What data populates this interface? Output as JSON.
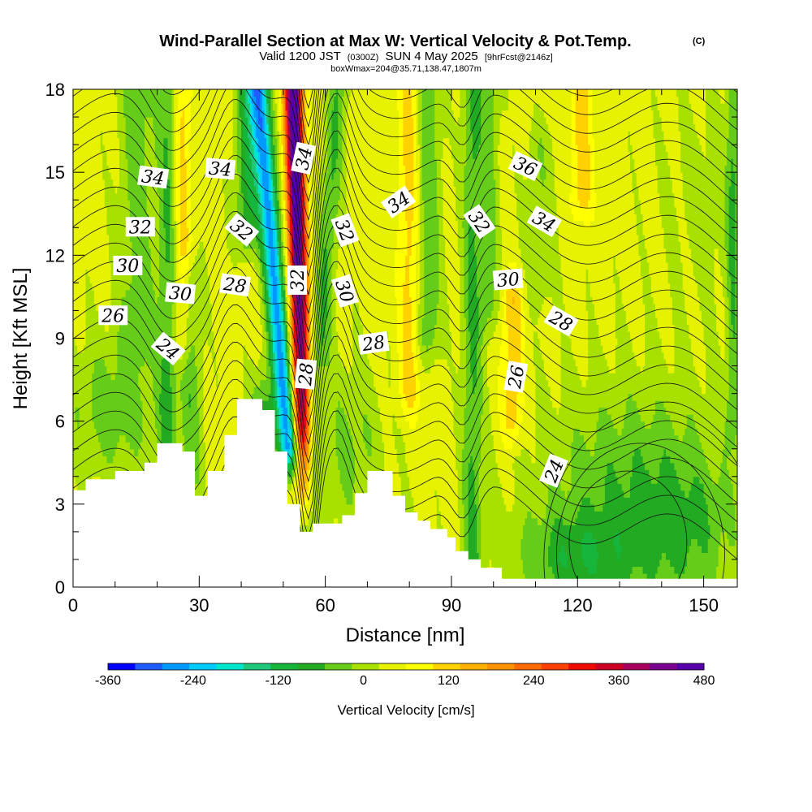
{
  "chart_data": {
    "type": "heatmap",
    "title": "Wind-Parallel Section at Max W: Vertical Velocity & Pot.Temp.",
    "title_tag": "(C)",
    "subtitle": {
      "prefix": "Valid 1200 JST",
      "utc": "(0300Z)",
      "date": "SUN 4 May 2025",
      "forecast": "[9hrFcst@2146z]"
    },
    "info_line": "boxWmax=204@35.71,138.47,1807m",
    "xlabel": "Distance [nm]",
    "ylabel": "Height [Kft MSL]",
    "xlim": [
      0,
      158
    ],
    "ylim": [
      0,
      18
    ],
    "x_ticks": [
      "0",
      "30",
      "60",
      "90",
      "120",
      "150"
    ],
    "y_ticks": [
      "0",
      "3",
      "6",
      "9",
      "12",
      "15",
      "18"
    ],
    "colorbar": {
      "label": "Vertical Velocity [cm/s]",
      "range": [
        -360,
        480
      ],
      "tick_labels": [
        "-360",
        "-240",
        "-120",
        "0",
        "120",
        "240",
        "360",
        "480"
      ],
      "colors": [
        "#0000ff",
        "#1e5cff",
        "#0099ff",
        "#00ccff",
        "#00e6cc",
        "#1fc77a",
        "#16b63c",
        "#22aa22",
        "#66cc1a",
        "#a8e000",
        "#e6f200",
        "#ffff00",
        "#ffd200",
        "#ffb000",
        "#ff9200",
        "#ff6a00",
        "#ff4000",
        "#ee0a00",
        "#cc0022",
        "#a8005c",
        "#7a0090",
        "#5500aa"
      ]
    },
    "terrain": [
      [
        0,
        3.5
      ],
      [
        2,
        3.5
      ],
      [
        3,
        3.9
      ],
      [
        9,
        3.9
      ],
      [
        10,
        4.2
      ],
      [
        16,
        4.2
      ],
      [
        17,
        4.5
      ],
      [
        19,
        4.5
      ],
      [
        20,
        5.2
      ],
      [
        25,
        5.2
      ],
      [
        26,
        4.9
      ],
      [
        28,
        4.9
      ],
      [
        29,
        3.3
      ],
      [
        31,
        3.3
      ],
      [
        32,
        4.2
      ],
      [
        35,
        4.2
      ],
      [
        36,
        5.5
      ],
      [
        38,
        5.5
      ],
      [
        39,
        6.8
      ],
      [
        44,
        6.8
      ],
      [
        45,
        6.4
      ],
      [
        47,
        6.4
      ],
      [
        48,
        4.9
      ],
      [
        50,
        4.9
      ],
      [
        51,
        3.0
      ],
      [
        53,
        3.0
      ],
      [
        54,
        2.0
      ],
      [
        56,
        2.0
      ],
      [
        57,
        2.3
      ],
      [
        63,
        2.3
      ],
      [
        64,
        2.6
      ],
      [
        66,
        2.6
      ],
      [
        67,
        3.4
      ],
      [
        69,
        3.4
      ],
      [
        70,
        4.2
      ],
      [
        75,
        4.2
      ],
      [
        76,
        3.3
      ],
      [
        78,
        3.3
      ],
      [
        79,
        2.7
      ],
      [
        81,
        2.7
      ],
      [
        82,
        2.4
      ],
      [
        84,
        2.4
      ],
      [
        85,
        2.1
      ],
      [
        88,
        2.1
      ],
      [
        89,
        1.8
      ],
      [
        90,
        1.8
      ],
      [
        91,
        1.3
      ],
      [
        93,
        1.3
      ],
      [
        94,
        1.0
      ],
      [
        96,
        1.0
      ],
      [
        97,
        0.7
      ],
      [
        101,
        0.7
      ],
      [
        102,
        0.3
      ],
      [
        158,
        0.3
      ]
    ],
    "contour_labels": [
      {
        "text": "34",
        "x": 19,
        "y": 14.8,
        "angle": 8
      },
      {
        "text": "34",
        "x": 35,
        "y": 15.1,
        "angle": 5
      },
      {
        "text": "32",
        "x": 16,
        "y": 13.0,
        "angle": 0
      },
      {
        "text": "32",
        "x": 40,
        "y": 12.9,
        "angle": 40
      },
      {
        "text": "30",
        "x": 13,
        "y": 11.6,
        "angle": 0
      },
      {
        "text": "30",
        "x": 25.5,
        "y": 10.6,
        "angle": 5
      },
      {
        "text": "28",
        "x": 38.5,
        "y": 10.9,
        "angle": 8
      },
      {
        "text": "26",
        "x": 9.5,
        "y": 9.8,
        "angle": 0
      },
      {
        "text": "24",
        "x": 22.5,
        "y": 8.6,
        "angle": 40
      },
      {
        "text": "34",
        "x": 55,
        "y": 15.5,
        "angle": -78
      },
      {
        "text": "32",
        "x": 53.5,
        "y": 11.1,
        "angle": -90
      },
      {
        "text": "28",
        "x": 55.5,
        "y": 7.7,
        "angle": -85
      },
      {
        "text": "32",
        "x": 64.5,
        "y": 12.9,
        "angle": 70
      },
      {
        "text": "30",
        "x": 64.5,
        "y": 10.7,
        "angle": 72
      },
      {
        "text": "34",
        "x": 77.5,
        "y": 13.9,
        "angle": -35
      },
      {
        "text": "28",
        "x": 71.5,
        "y": 8.8,
        "angle": -8
      },
      {
        "text": "32",
        "x": 96.5,
        "y": 13.2,
        "angle": 55
      },
      {
        "text": "30",
        "x": 103.5,
        "y": 11.1,
        "angle": -5
      },
      {
        "text": "36",
        "x": 107.5,
        "y": 15.2,
        "angle": 25
      },
      {
        "text": "34",
        "x": 112,
        "y": 13.2,
        "angle": 30
      },
      {
        "text": "28",
        "x": 116,
        "y": 9.6,
        "angle": 30
      },
      {
        "text": "26",
        "x": 105.5,
        "y": 7.6,
        "angle": -80
      },
      {
        "text": "24",
        "x": 114.5,
        "y": 4.2,
        "angle": -68
      }
    ]
  }
}
